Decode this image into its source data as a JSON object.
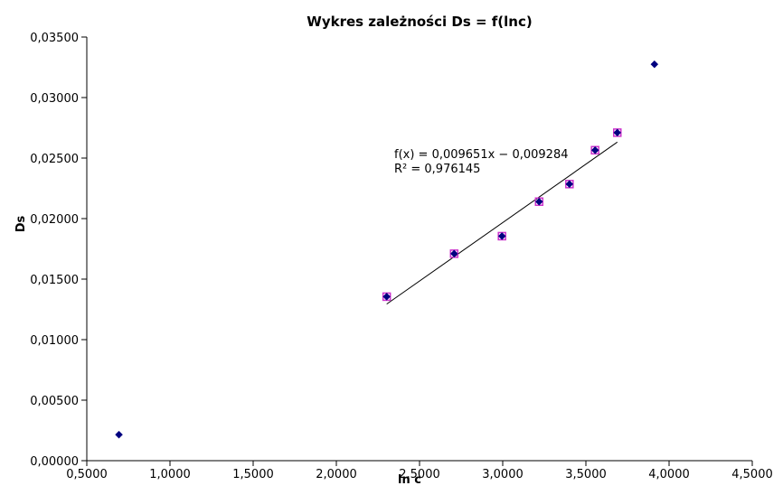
{
  "chart_data": {
    "type": "scatter",
    "title": "Wykres zależności Ds = f(lnc)",
    "xlabel": "ln c",
    "ylabel": "Ds",
    "xlim": [
      0.5,
      4.5
    ],
    "ylim": [
      0.0,
      0.035
    ],
    "x_ticks": [
      "0,5000",
      "1,0000",
      "1,5000",
      "2,0000",
      "2,5000",
      "3,0000",
      "3,5000",
      "4,0000",
      "4,5000"
    ],
    "y_ticks": [
      "0,00000",
      "0,00500",
      "0,01000",
      "0,01500",
      "0,02000",
      "0,02500",
      "0,03000",
      "0,03500"
    ],
    "grid": false,
    "legend": "none",
    "series": [
      {
        "marker": "diamond",
        "color": "#000080",
        "points": [
          {
            "x": 0.6931,
            "y": 0.00215
          },
          {
            "x": 2.3026,
            "y": 0.01355
          },
          {
            "x": 2.7081,
            "y": 0.0171
          },
          {
            "x": 2.9957,
            "y": 0.01855
          },
          {
            "x": 3.2189,
            "y": 0.0214
          },
          {
            "x": 3.4012,
            "y": 0.02285
          },
          {
            "x": 3.5553,
            "y": 0.02565
          },
          {
            "x": 3.6889,
            "y": 0.0271
          },
          {
            "x": 3.912,
            "y": 0.03275
          }
        ]
      },
      {
        "marker": "square",
        "color": "#cc33cc",
        "points": [
          {
            "x": 2.3026,
            "y": 0.01355
          },
          {
            "x": 2.7081,
            "y": 0.0171
          },
          {
            "x": 2.9957,
            "y": 0.01855
          },
          {
            "x": 3.2189,
            "y": 0.0214
          },
          {
            "x": 3.4012,
            "y": 0.02285
          },
          {
            "x": 3.5553,
            "y": 0.02565
          },
          {
            "x": 3.6889,
            "y": 0.0271
          }
        ]
      }
    ],
    "trendline": {
      "slope": 0.009651,
      "intercept": -0.009284,
      "x_range": [
        2.3026,
        3.6889
      ],
      "color": "#000000",
      "equation": "f(x) = 0,009651x − 0,009284",
      "r_squared": "R² = 0,976145"
    }
  }
}
